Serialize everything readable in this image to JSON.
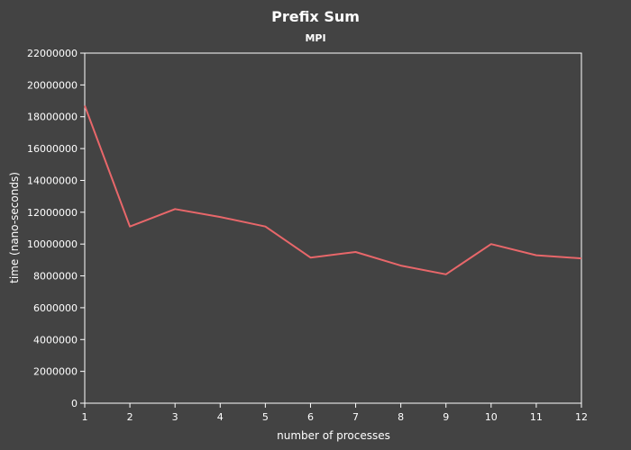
{
  "chart_data": {
    "type": "line",
    "title": "Prefix Sum",
    "subtitle": "MPI",
    "xlabel": "number of processes",
    "ylabel": "time (nano-seconds)",
    "x": [
      1,
      2,
      3,
      4,
      5,
      6,
      7,
      8,
      9,
      10,
      11,
      12
    ],
    "x_tick_labels": [
      "1",
      "2",
      "3",
      "4",
      "5",
      "6",
      "7",
      "8",
      "9",
      "10",
      "11",
      "12"
    ],
    "y_ticks": [
      0,
      2000000,
      4000000,
      6000000,
      8000000,
      10000000,
      12000000,
      14000000,
      16000000,
      18000000,
      20000000,
      22000000
    ],
    "y_tick_labels": [
      "0",
      "2000000",
      "4000000",
      "6000000",
      "8000000",
      "10000000",
      "12000000",
      "14000000",
      "16000000",
      "18000000",
      "20000000",
      "22000000"
    ],
    "ylim": [
      0,
      22000000
    ],
    "xlim": [
      1,
      12
    ],
    "grid": false,
    "legend": "none",
    "series": [
      {
        "color": "#e8676a",
        "values": [
          18700000,
          11100000,
          12200000,
          11700000,
          11100000,
          9150000,
          9500000,
          8650000,
          8100000,
          10000000,
          9300000,
          9100000
        ]
      }
    ],
    "colors": {
      "background": "#434343",
      "axis": "#ffffff",
      "text": "#ffffff"
    }
  }
}
